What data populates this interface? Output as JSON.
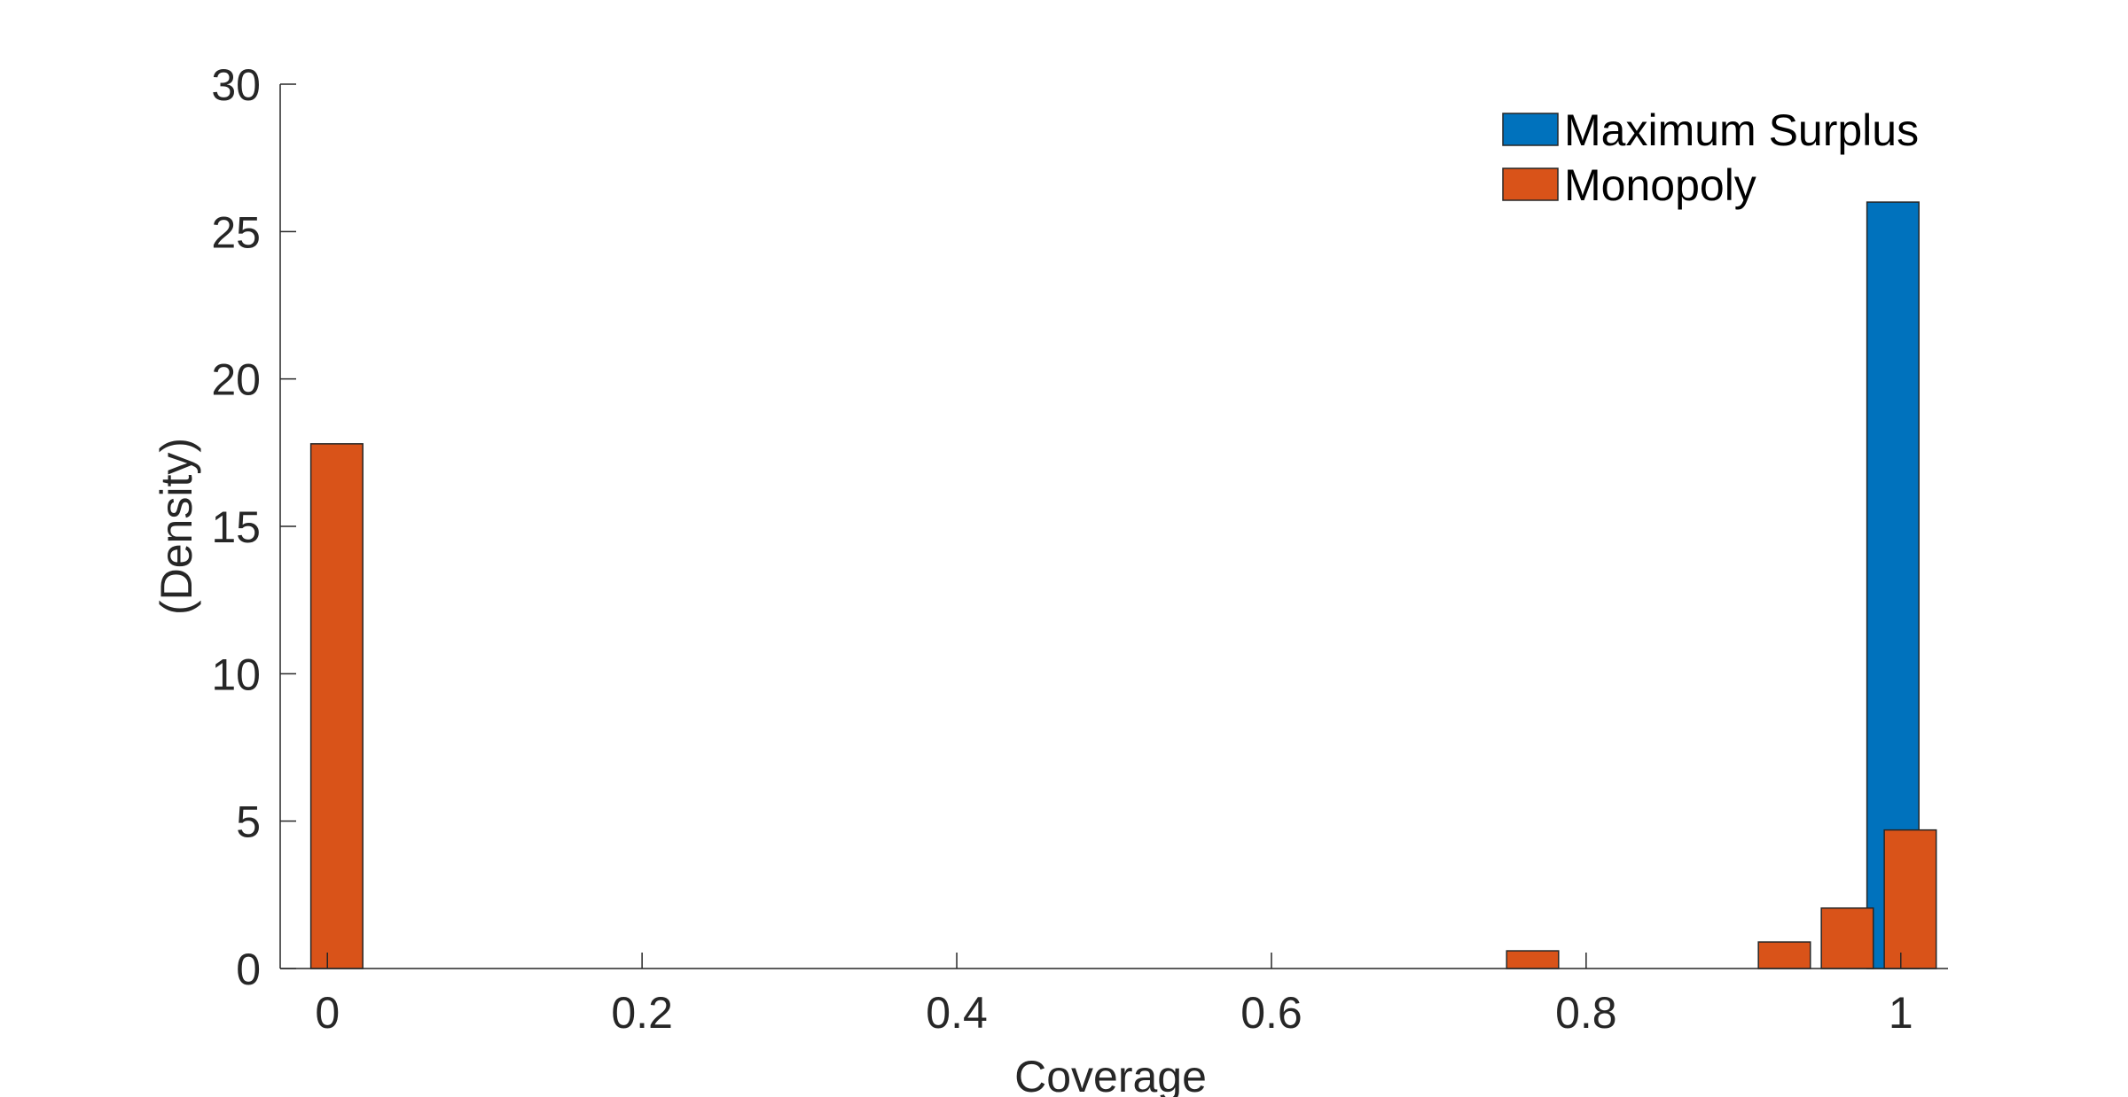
{
  "chart_data": {
    "type": "bar",
    "title": "",
    "xlabel": "Coverage",
    "ylabel": "(Density)",
    "xlim": [
      -0.03,
      1.03
    ],
    "ylim": [
      0,
      30
    ],
    "xticks": [
      0,
      0.2,
      0.4,
      0.6,
      0.8,
      1
    ],
    "xtick_labels": [
      "0",
      "0.2",
      "0.4",
      "0.6",
      "0.8",
      "1"
    ],
    "yticks": [
      0,
      5,
      10,
      15,
      20,
      25,
      30
    ],
    "ytick_labels": [
      "0",
      "5",
      "10",
      "15",
      "20",
      "25",
      "30"
    ],
    "bar_width": 0.033,
    "grid": false,
    "legend_position": "top-right",
    "series": [
      {
        "name": "Maximum Surplus",
        "color": "#0072BD",
        "bars": [
          {
            "x": 0.995,
            "value": 26.0
          }
        ]
      },
      {
        "name": "Monopoly",
        "color": "#D95319",
        "bars": [
          {
            "x": 0.006,
            "value": 17.8
          },
          {
            "x": 0.766,
            "value": 0.6
          },
          {
            "x": 0.926,
            "value": 0.9
          },
          {
            "x": 0.966,
            "value": 2.05
          },
          {
            "x": 1.006,
            "value": 4.7
          }
        ]
      }
    ]
  }
}
